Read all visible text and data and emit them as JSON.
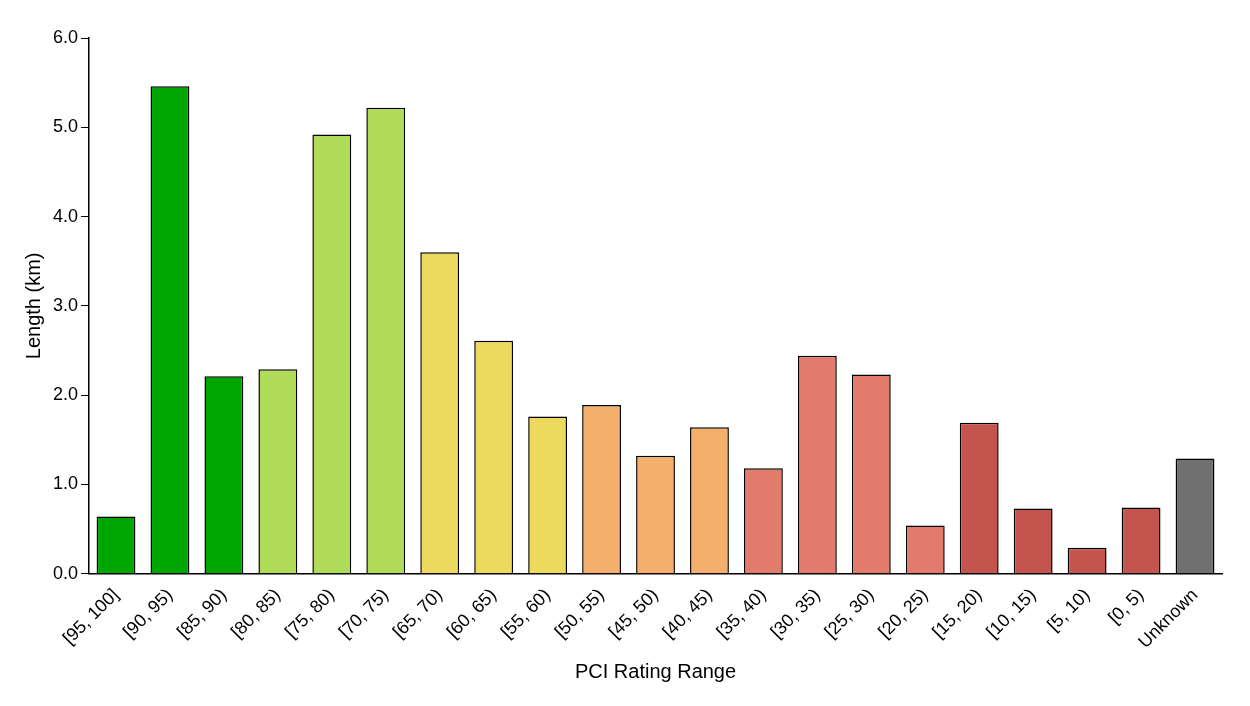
{
  "chart_data": {
    "type": "bar",
    "xlabel": "PCI Rating Range",
    "ylabel": "Length (km)",
    "categories": [
      "[95, 100]",
      "[90, 95)",
      "[85, 90)",
      "[80, 85)",
      "[75, 80)",
      "[70, 75)",
      "[65, 70)",
      "[60, 65)",
      "[55, 60)",
      "[50, 55)",
      "[45, 50)",
      "[40, 45)",
      "[35, 40)",
      "[30, 35)",
      "[25, 30)",
      "[20, 25)",
      "[15, 20)",
      "[10, 15)",
      "[5, 10)",
      "[0, 5)",
      "Unknown"
    ],
    "values": [
      0.64,
      5.46,
      2.21,
      2.29,
      4.92,
      5.22,
      3.6,
      2.61,
      1.76,
      1.89,
      1.32,
      1.64,
      1.18,
      2.44,
      2.23,
      0.54,
      1.69,
      0.73,
      0.29,
      0.74,
      1.29
    ],
    "colors": [
      "#00a600",
      "#00a600",
      "#00a600",
      "#b0dc5a",
      "#b0dc5a",
      "#b0dc5a",
      "#ecd95e",
      "#ecd95e",
      "#ecd95e",
      "#f5af6c",
      "#f5af6c",
      "#f5af6c",
      "#e17b6b",
      "#e17b6b",
      "#e17b6b",
      "#e17b6b",
      "#c4554e",
      "#c4554e",
      "#c4554e",
      "#c4554e",
      "#707070"
    ],
    "ylim": [
      0,
      6
    ],
    "yticks": [
      {
        "value": 0,
        "label": "0.0"
      },
      {
        "value": 1,
        "label": "1.0"
      },
      {
        "value": 2,
        "label": "2.0"
      },
      {
        "value": 3,
        "label": "3.0"
      },
      {
        "value": 4,
        "label": "4.0"
      },
      {
        "value": 5,
        "label": "5.0"
      },
      {
        "value": 6,
        "label": "6.0"
      }
    ],
    "grid": false,
    "legend": false
  }
}
